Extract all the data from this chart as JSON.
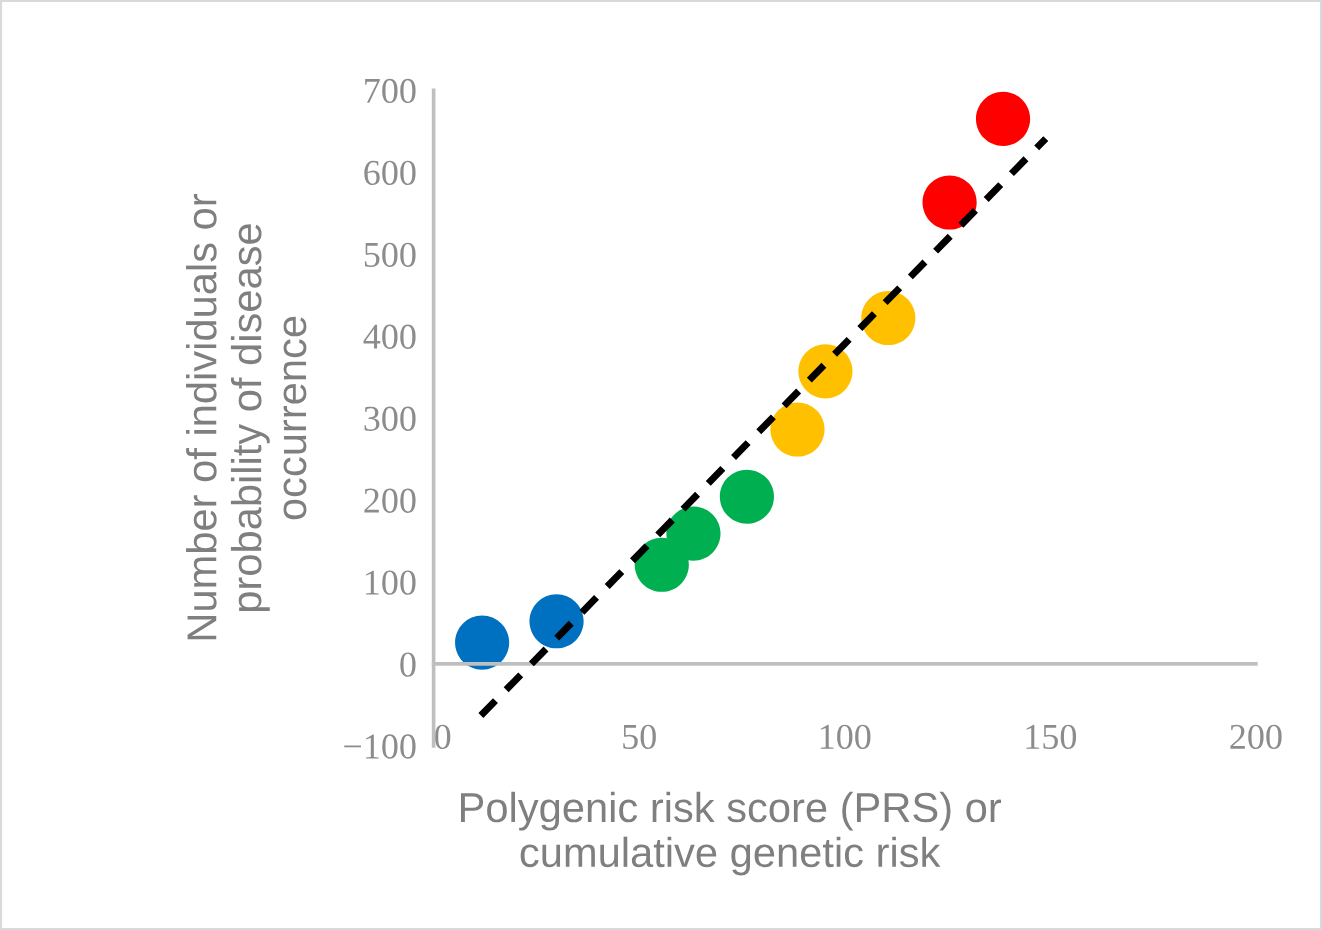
{
  "chart_data": {
    "type": "scatter",
    "xlabel": "Polygenic risk score (PRS) or\ncumulative genetic risk",
    "ylabel": "Number of individuals or\nprobability of disease\noccurrence",
    "series": [
      {
        "color": "#0070c0",
        "x": [
          11.8,
          29.9
        ],
        "values": [
          26,
          52
        ]
      },
      {
        "color": "#00b050",
        "x": [
          55.5,
          63.2,
          76.2
        ],
        "values": [
          121,
          159,
          204
        ]
      },
      {
        "color": "#ffc000",
        "x": [
          88.5,
          95.3,
          110.6
        ],
        "values": [
          286,
          357,
          422
        ]
      },
      {
        "color": "#ff0000",
        "x": [
          125.5,
          138.5
        ],
        "values": [
          563,
          665
        ]
      },
      {
        "type": "line",
        "color": "#000000",
        "line_style": "dashed",
        "marker": "none",
        "x": [
          11.5,
          148.9
        ],
        "values": [
          -63,
          641
        ]
      }
    ],
    "xlim": [
      0,
      200
    ],
    "xticks": [
      0,
      50,
      100,
      150,
      200
    ],
    "ylim": [
      -100,
      700
    ],
    "yticks": [
      {
        "value": -100,
        "label": "−100"
      },
      0,
      100,
      200,
      300,
      400,
      500,
      600,
      700
    ],
    "marker": "circle",
    "grid": false,
    "legend": false
  }
}
